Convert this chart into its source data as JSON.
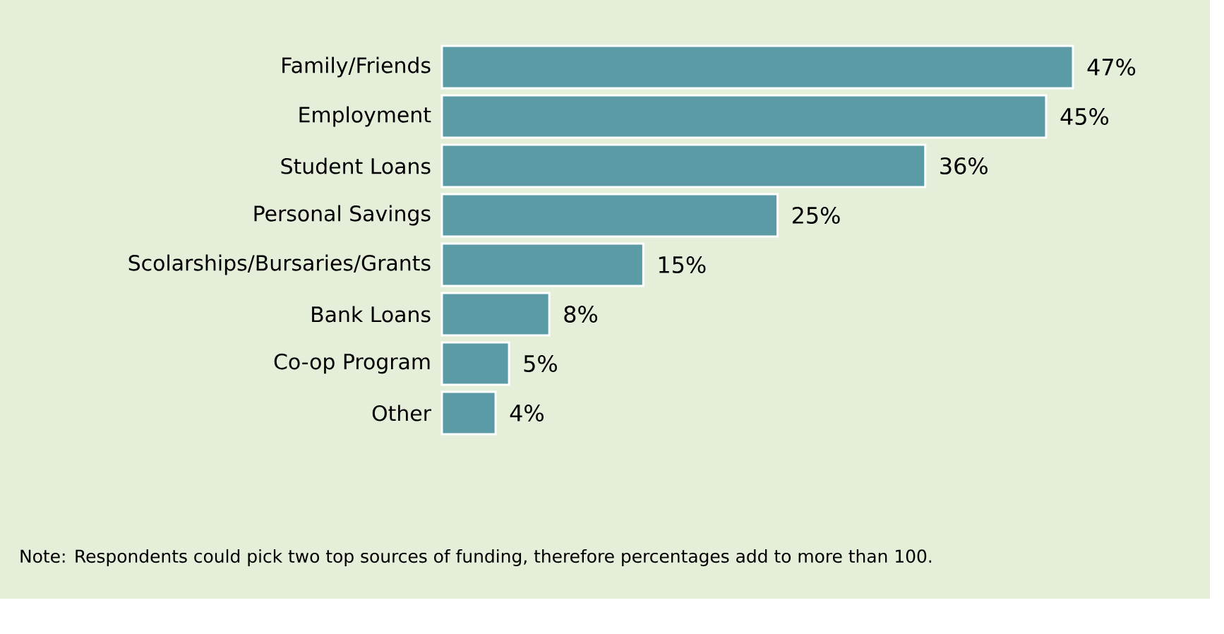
{
  "chart_data": {
    "type": "bar",
    "orientation": "horizontal",
    "color": "#5b9ba6",
    "categories": [
      "Family/Friends",
      "Employment",
      "Student Loans",
      "Personal Savings",
      "Scolarships/Bursaries/Grants",
      "Bank Loans",
      "Co-op Program",
      "Other"
    ],
    "values": [
      47,
      45,
      36,
      25,
      15,
      8,
      5,
      4
    ],
    "value_labels": [
      "47%",
      "45%",
      "36%",
      "25%",
      "15%",
      "8%",
      "5%",
      "4%"
    ],
    "annotations": [
      "Note: Respondents could pick two top sources of funding, therefore percentages add to more than 100."
    ]
  }
}
